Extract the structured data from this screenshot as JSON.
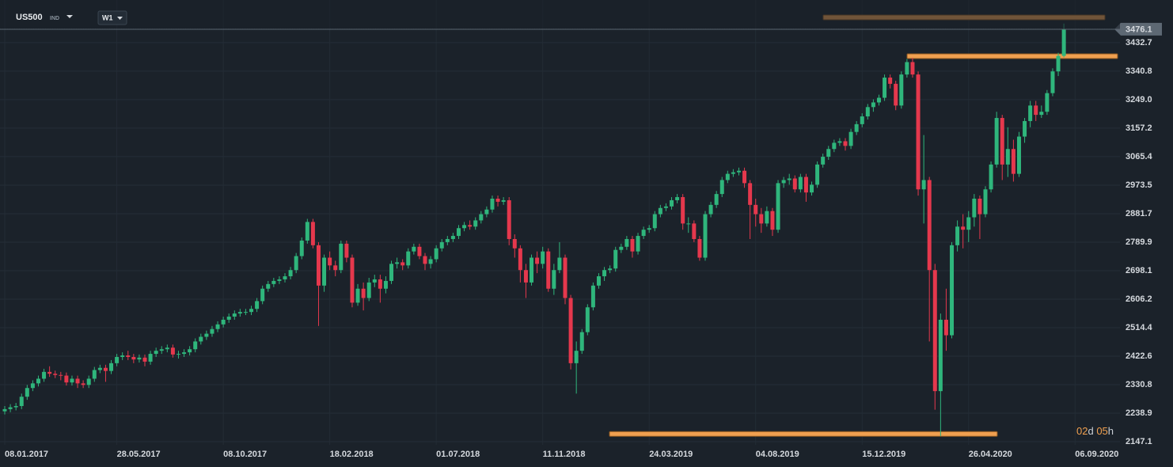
{
  "header": {
    "symbol": "US500",
    "kind": "IND",
    "interval": "W1"
  },
  "countdown": [
    "02",
    "d",
    " 05",
    "h"
  ],
  "chart_data": {
    "type": "candlestick",
    "up_color": "#2fb67c",
    "down_color": "#e5384d",
    "level_color": "#f0a050",
    "grid": true,
    "current_price": 3476.1,
    "ylim": [
      2137,
      3570
    ],
    "yticks": [
      2147.1,
      2238.9,
      2330.8,
      2422.6,
      2514.4,
      2606.2,
      2698.1,
      2789.9,
      2881.7,
      2973.5,
      3065.4,
      3157.2,
      {
        "value": 3249,
        "label": "3249.0"
      },
      3340.8,
      3432.7
    ],
    "levels": [
      3514,
      3389,
      2172
    ],
    "categories": [
      "08.01.2017",
      null,
      null,
      null,
      null,
      null,
      null,
      null,
      null,
      null,
      null,
      null,
      null,
      null,
      null,
      null,
      null,
      null,
      null,
      null,
      "28.05.2017",
      null,
      null,
      null,
      null,
      null,
      null,
      null,
      null,
      null,
      null,
      null,
      null,
      null,
      null,
      null,
      null,
      null,
      null,
      "08.10.2017",
      null,
      null,
      null,
      null,
      null,
      null,
      null,
      null,
      null,
      null,
      null,
      null,
      null,
      null,
      null,
      null,
      null,
      null,
      "18.02.2018",
      null,
      null,
      null,
      null,
      null,
      null,
      null,
      null,
      null,
      null,
      null,
      null,
      null,
      null,
      null,
      null,
      null,
      null,
      "01.07.2018",
      null,
      null,
      null,
      null,
      null,
      null,
      null,
      null,
      null,
      null,
      null,
      null,
      null,
      null,
      null,
      null,
      null,
      null,
      "11.11.2018",
      null,
      null,
      null,
      null,
      null,
      null,
      null,
      null,
      null,
      null,
      null,
      null,
      null,
      null,
      null,
      null,
      null,
      null,
      "24.03.2019",
      null,
      null,
      null,
      null,
      null,
      null,
      null,
      null,
      null,
      null,
      null,
      null,
      null,
      null,
      null,
      null,
      null,
      null,
      "04.08.2019",
      null,
      null,
      null,
      null,
      null,
      null,
      null,
      null,
      null,
      null,
      null,
      null,
      null,
      null,
      null,
      null,
      null,
      null,
      "15.12.2019",
      null,
      null,
      null,
      null,
      null,
      null,
      null,
      null,
      null,
      null,
      null,
      null,
      null,
      null,
      null,
      null,
      null,
      null,
      "26.04.2020",
      null,
      null,
      null,
      null,
      null,
      null,
      null,
      null,
      null,
      null,
      null,
      null,
      null,
      null,
      null,
      null,
      null,
      null,
      "06.09.2020"
    ],
    "open": [
      2245,
      2252,
      2258,
      2262,
      2292,
      2320,
      2335,
      2350,
      2372,
      2366,
      2362,
      2360,
      2338,
      2350,
      2335,
      2330,
      2350,
      2378,
      2385,
      2375,
      2400,
      2420,
      2425,
      2420,
      2412,
      2418,
      2405,
      2430,
      2440,
      2445,
      2450,
      2428,
      2430,
      2435,
      2445,
      2470,
      2485,
      2495,
      2510,
      2525,
      2540,
      2550,
      2560,
      2565,
      2565,
      2575,
      2600,
      2640,
      2655,
      2665,
      2670,
      2680,
      2700,
      2745,
      2795,
      2855,
      2780,
      2650,
      2740,
      2715,
      2700,
      2785,
      2740,
      2595,
      2640,
      2610,
      2660,
      2670,
      2640,
      2665,
      2720,
      2725,
      2715,
      2760,
      2775,
      2745,
      2720,
      2735,
      2770,
      2790,
      2800,
      2810,
      2835,
      2845,
      2840,
      2860,
      2880,
      2895,
      2930,
      2920,
      2925,
      2800,
      2770,
      2700,
      2660,
      2740,
      2720,
      2760,
      2640,
      2700,
      2740,
      2610,
      2400,
      2440,
      2500,
      2580,
      2650,
      2680,
      2700,
      2705,
      2765,
      2775,
      2800,
      2760,
      2810,
      2830,
      2835,
      2880,
      2900,
      2905,
      2925,
      2935,
      2850,
      2850,
      2800,
      2740,
      2880,
      2910,
      2945,
      2990,
      3010,
      3015,
      3020,
      2980,
      2910,
      2880,
      2850,
      2890,
      2830,
      2980,
      2990,
      2995,
      2960,
      3000,
      2950,
      2975,
      3040,
      3065,
      3090,
      3110,
      3115,
      3100,
      3145,
      3170,
      3195,
      3225,
      3240,
      3255,
      3320,
      3300,
      3230,
      3330,
      3370,
      3330,
      2960,
      2990,
      2700,
      2310,
      2540,
      2490,
      2780,
      2840,
      2830,
      2870,
      2930,
      2880,
      2960,
      3040,
      3190,
      3040,
      3090,
      3010,
      3130,
      3180,
      3230,
      3200,
      3210,
      3270,
      3340,
      3390,
      null,
      null
    ],
    "high": [
      2262,
      2268,
      2272,
      2302,
      2330,
      2345,
      2360,
      2382,
      2390,
      2376,
      2372,
      2370,
      2360,
      2360,
      2345,
      2360,
      2388,
      2395,
      2395,
      2410,
      2430,
      2435,
      2440,
      2430,
      2428,
      2428,
      2440,
      2450,
      2455,
      2460,
      2460,
      2440,
      2445,
      2455,
      2480,
      2495,
      2505,
      2520,
      2535,
      2550,
      2560,
      2570,
      2575,
      2575,
      2585,
      2610,
      2650,
      2665,
      2675,
      2680,
      2690,
      2710,
      2755,
      2805,
      2865,
      2865,
      2790,
      2750,
      2760,
      2730,
      2795,
      2795,
      2750,
      2655,
      2660,
      2675,
      2685,
      2685,
      2680,
      2730,
      2740,
      2735,
      2770,
      2785,
      2785,
      2755,
      2745,
      2780,
      2800,
      2810,
      2820,
      2845,
      2855,
      2860,
      2870,
      2890,
      2905,
      2940,
      2940,
      2935,
      2935,
      2815,
      2780,
      2720,
      2750,
      2760,
      2775,
      2770,
      2720,
      2790,
      2750,
      2620,
      2470,
      2510,
      2590,
      2660,
      2690,
      2710,
      2715,
      2775,
      2785,
      2810,
      2810,
      2820,
      2840,
      2845,
      2890,
      2910,
      2915,
      2935,
      2945,
      2945,
      2870,
      2860,
      2810,
      2890,
      2920,
      2955,
      3000,
      3020,
      3025,
      3030,
      3030,
      2990,
      2930,
      2900,
      2905,
      2900,
      2990,
      3000,
      3010,
      3005,
      3010,
      3010,
      2985,
      3050,
      3075,
      3100,
      3120,
      3125,
      3125,
      3155,
      3180,
      3205,
      3235,
      3250,
      3265,
      3330,
      3330,
      3310,
      3340,
      3380,
      3384,
      3340,
      3135,
      3000,
      2720,
      2560,
      2640,
      2790,
      2860,
      2880,
      2890,
      2945,
      2940,
      2970,
      3050,
      3210,
      3200,
      3160,
      3120,
      3145,
      3190,
      3245,
      3245,
      3230,
      3280,
      3350,
      3400,
      3494,
      null,
      null
    ],
    "low": [
      2235,
      2242,
      2248,
      2252,
      2282,
      2310,
      2325,
      2340,
      2356,
      2352,
      2345,
      2328,
      2328,
      2320,
      2320,
      2320,
      2340,
      2368,
      2340,
      2365,
      2390,
      2410,
      2410,
      2400,
      2402,
      2390,
      2395,
      2420,
      2430,
      2435,
      2418,
      2415,
      2420,
      2425,
      2435,
      2460,
      2475,
      2485,
      2500,
      2515,
      2530,
      2540,
      2550,
      2555,
      2555,
      2565,
      2590,
      2630,
      2645,
      2655,
      2660,
      2670,
      2690,
      2735,
      2785,
      2770,
      2520,
      2630,
      2700,
      2680,
      2690,
      2725,
      2580,
      2585,
      2570,
      2600,
      2645,
      2595,
      2625,
      2655,
      2705,
      2700,
      2705,
      2750,
      2735,
      2700,
      2705,
      2725,
      2760,
      2780,
      2790,
      2800,
      2825,
      2830,
      2830,
      2850,
      2870,
      2885,
      2905,
      2910,
      2780,
      2740,
      2660,
      2610,
      2650,
      2690,
      2705,
      2630,
      2620,
      2690,
      2590,
      2380,
      2302,
      2430,
      2490,
      2570,
      2640,
      2665,
      2690,
      2695,
      2755,
      2765,
      2740,
      2750,
      2800,
      2820,
      2825,
      2870,
      2890,
      2895,
      2915,
      2830,
      2820,
      2790,
      2730,
      2730,
      2870,
      2900,
      2935,
      2980,
      3000,
      3005,
      2965,
      2800,
      2840,
      2820,
      2840,
      2810,
      2820,
      2965,
      2975,
      2950,
      2950,
      2920,
      2940,
      2965,
      3030,
      3055,
      3080,
      3100,
      3085,
      3090,
      3135,
      3160,
      3185,
      3210,
      3230,
      3245,
      3285,
      3215,
      3220,
      3320,
      3320,
      2940,
      2850,
      2470,
      2250,
      2165,
      2440,
      2480,
      2760,
      2770,
      2790,
      2840,
      2800,
      2870,
      2950,
      3030,
      2990,
      3000,
      2985,
      3000,
      3110,
      3160,
      3180,
      3190,
      3200,
      3260,
      3325,
      3385,
      null,
      null
    ],
    "close": [
      2252,
      2258,
      2262,
      2292,
      2320,
      2335,
      2350,
      2372,
      2366,
      2362,
      2360,
      2338,
      2350,
      2335,
      2330,
      2350,
      2378,
      2385,
      2375,
      2400,
      2420,
      2425,
      2420,
      2412,
      2418,
      2405,
      2430,
      2440,
      2445,
      2450,
      2428,
      2430,
      2435,
      2445,
      2470,
      2485,
      2495,
      2510,
      2525,
      2540,
      2550,
      2560,
      2565,
      2565,
      2575,
      2600,
      2640,
      2655,
      2665,
      2670,
      2680,
      2700,
      2745,
      2795,
      2855,
      2780,
      2650,
      2740,
      2715,
      2700,
      2785,
      2740,
      2595,
      2640,
      2610,
      2660,
      2670,
      2640,
      2665,
      2720,
      2725,
      2715,
      2760,
      2775,
      2745,
      2720,
      2735,
      2770,
      2790,
      2800,
      2810,
      2835,
      2845,
      2840,
      2860,
      2880,
      2895,
      2930,
      2920,
      2925,
      2800,
      2770,
      2700,
      2660,
      2740,
      2720,
      2760,
      2640,
      2700,
      2740,
      2610,
      2400,
      2440,
      2500,
      2580,
      2650,
      2680,
      2700,
      2705,
      2765,
      2775,
      2800,
      2760,
      2810,
      2830,
      2835,
      2880,
      2900,
      2905,
      2925,
      2935,
      2850,
      2850,
      2800,
      2740,
      2880,
      2910,
      2945,
      2990,
      3010,
      3015,
      3020,
      2980,
      2910,
      2880,
      2850,
      2890,
      2830,
      2980,
      2990,
      2995,
      2960,
      3000,
      2950,
      2975,
      3040,
      3065,
      3090,
      3110,
      3115,
      3100,
      3145,
      3170,
      3195,
      3225,
      3240,
      3255,
      3320,
      3300,
      3230,
      3330,
      3370,
      3330,
      2960,
      2990,
      2700,
      2310,
      2540,
      2490,
      2780,
      2840,
      2830,
      2870,
      2930,
      2880,
      2960,
      3040,
      3190,
      3040,
      3090,
      3010,
      3130,
      3180,
      3230,
      3200,
      3210,
      3270,
      3340,
      3390,
      3476,
      null,
      null
    ]
  }
}
